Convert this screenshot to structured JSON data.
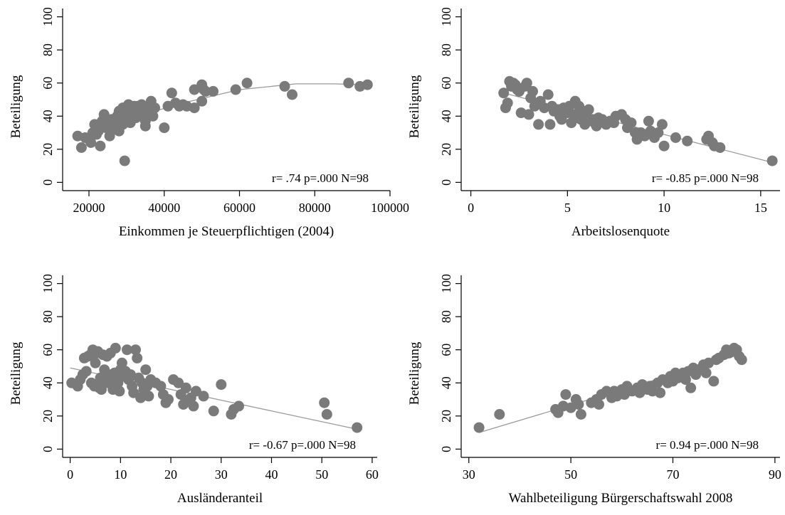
{
  "chart_data": [
    {
      "type": "scatter",
      "xlabel": "Einkommen je Steuerpflichtigen (2004)",
      "ylabel": "Beteiligung",
      "xlim": [
        13000,
        100000
      ],
      "ylim": [
        -5,
        105
      ],
      "xticks": [
        20000,
        40000,
        60000,
        80000,
        100000
      ],
      "xtick_labels": [
        "20000",
        "40000",
        "60000",
        "80000",
        "100000"
      ],
      "yticks": [
        0,
        20,
        40,
        60,
        80,
        100
      ],
      "annotation": "r= .74 p=.000 N=98",
      "fit": {
        "kind": "quadratic",
        "points": [
          [
            17000,
            26
          ],
          [
            30000,
            38
          ],
          [
            45000,
            48
          ],
          [
            60000,
            56
          ],
          [
            75000,
            59.5
          ],
          [
            85000,
            59.5
          ],
          [
            94000,
            59
          ]
        ]
      },
      "points": [
        [
          17000,
          28
        ],
        [
          18000,
          21
        ],
        [
          19000,
          27
        ],
        [
          20000,
          26
        ],
        [
          20500,
          24
        ],
        [
          21000,
          30
        ],
        [
          21500,
          35
        ],
        [
          22000,
          29
        ],
        [
          22500,
          31
        ],
        [
          23000,
          22
        ],
        [
          23500,
          37
        ],
        [
          24000,
          41
        ],
        [
          24500,
          33
        ],
        [
          25000,
          35
        ],
        [
          25500,
          28
        ],
        [
          26000,
          38
        ],
        [
          26500,
          32
        ],
        [
          27000,
          36
        ],
        [
          27500,
          40
        ],
        [
          28000,
          43
        ],
        [
          28000,
          31
        ],
        [
          28500,
          39
        ],
        [
          29000,
          45
        ],
        [
          29000,
          35
        ],
        [
          29500,
          13
        ],
        [
          30000,
          44
        ],
        [
          30000,
          38
        ],
        [
          30500,
          47
        ],
        [
          31000,
          41
        ],
        [
          31000,
          36
        ],
        [
          31500,
          44
        ],
        [
          32000,
          46
        ],
        [
          32500,
          39
        ],
        [
          33000,
          46
        ],
        [
          33500,
          43
        ],
        [
          34000,
          47
        ],
        [
          34500,
          41
        ],
        [
          35000,
          37
        ],
        [
          35000,
          34
        ],
        [
          35500,
          45
        ],
        [
          36000,
          43
        ],
        [
          36500,
          49
        ],
        [
          37000,
          40
        ],
        [
          37500,
          45
        ],
        [
          40000,
          33
        ],
        [
          41000,
          46
        ],
        [
          42000,
          54
        ],
        [
          43000,
          48
        ],
        [
          44000,
          46
        ],
        [
          45000,
          47
        ],
        [
          46000,
          46
        ],
        [
          48000,
          45
        ],
        [
          48000,
          56
        ],
        [
          50000,
          49
        ],
        [
          50000,
          59
        ],
        [
          50500,
          56
        ],
        [
          51000,
          55
        ],
        [
          53000,
          55
        ],
        [
          59000,
          56
        ],
        [
          62000,
          60
        ],
        [
          72000,
          58
        ],
        [
          74000,
          53
        ],
        [
          89000,
          60
        ],
        [
          92000,
          58
        ],
        [
          94000,
          59
        ]
      ]
    },
    {
      "type": "scatter",
      "xlabel": "Arbeitslosenquote",
      "ylabel": "Beteiligung",
      "xlim": [
        -0.5,
        16
      ],
      "ylim": [
        -5,
        105
      ],
      "xticks": [
        0,
        5,
        10,
        15
      ],
      "xtick_labels": [
        "0",
        "5",
        "10",
        "15"
      ],
      "yticks": [
        0,
        20,
        40,
        60,
        80,
        100
      ],
      "annotation": "r= -0.85 p=.000 N=98",
      "fit": {
        "kind": "linear",
        "points": [
          [
            1.7,
            54
          ],
          [
            15.6,
            12
          ]
        ]
      },
      "points": [
        [
          1.7,
          54
        ],
        [
          1.8,
          45
        ],
        [
          1.9,
          48
        ],
        [
          2.0,
          61
        ],
        [
          2.1,
          58
        ],
        [
          2.2,
          60
        ],
        [
          2.3,
          59
        ],
        [
          2.4,
          56
        ],
        [
          2.5,
          55
        ],
        [
          2.6,
          42
        ],
        [
          2.8,
          58
        ],
        [
          2.9,
          60
        ],
        [
          3.0,
          41
        ],
        [
          3.1,
          51
        ],
        [
          3.2,
          55
        ],
        [
          3.3,
          46
        ],
        [
          3.5,
          35
        ],
        [
          3.6,
          49
        ],
        [
          3.8,
          45
        ],
        [
          4.0,
          53
        ],
        [
          4.1,
          35
        ],
        [
          4.2,
          46
        ],
        [
          4.3,
          43
        ],
        [
          4.5,
          44
        ],
        [
          4.6,
          40
        ],
        [
          4.7,
          38
        ],
        [
          4.8,
          45
        ],
        [
          5.0,
          42
        ],
        [
          5.1,
          46
        ],
        [
          5.2,
          36
        ],
        [
          5.3,
          41
        ],
        [
          5.4,
          49
        ],
        [
          5.5,
          39
        ],
        [
          5.6,
          46
        ],
        [
          5.7,
          38
        ],
        [
          5.8,
          43
        ],
        [
          5.9,
          35
        ],
        [
          6.0,
          40
        ],
        [
          6.1,
          44
        ],
        [
          6.3,
          38
        ],
        [
          6.4,
          36
        ],
        [
          6.5,
          34
        ],
        [
          6.6,
          39
        ],
        [
          6.8,
          38
        ],
        [
          7.0,
          35
        ],
        [
          7.2,
          37
        ],
        [
          7.4,
          36
        ],
        [
          7.5,
          40
        ],
        [
          7.8,
          41
        ],
        [
          8.0,
          38
        ],
        [
          8.1,
          33
        ],
        [
          8.3,
          36
        ],
        [
          8.5,
          30
        ],
        [
          8.6,
          26
        ],
        [
          8.8,
          30
        ],
        [
          9.0,
          28
        ],
        [
          9.2,
          37
        ],
        [
          9.3,
          31
        ],
        [
          9.5,
          27
        ],
        [
          9.7,
          30
        ],
        [
          9.9,
          35
        ],
        [
          10.0,
          22
        ],
        [
          10.6,
          27
        ],
        [
          11.2,
          25
        ],
        [
          12.2,
          26
        ],
        [
          12.3,
          28
        ],
        [
          12.5,
          24
        ],
        [
          12.6,
          22
        ],
        [
          12.9,
          21
        ],
        [
          15.6,
          13
        ]
      ]
    },
    {
      "type": "scatter",
      "xlabel": "Ausländeranteil",
      "ylabel": "Beteiligung",
      "xlim": [
        -1.5,
        61
      ],
      "ylim": [
        -5,
        105
      ],
      "xticks": [
        0,
        10,
        20,
        30,
        40,
        50,
        60
      ],
      "xtick_labels": [
        "0",
        "10",
        "20",
        "30",
        "40",
        "50",
        "60"
      ],
      "yticks": [
        0,
        20,
        40,
        60,
        80,
        100
      ],
      "annotation": "r= -0.67 p=.000 N=98",
      "fit": {
        "kind": "linear",
        "points": [
          [
            0,
            49
          ],
          [
            57,
            12
          ]
        ]
      },
      "points": [
        [
          0.3,
          40
        ],
        [
          1.5,
          38
        ],
        [
          2.0,
          42
        ],
        [
          2.5,
          45
        ],
        [
          2.8,
          55
        ],
        [
          3.2,
          47
        ],
        [
          3.5,
          56
        ],
        [
          4.0,
          57
        ],
        [
          4.2,
          40
        ],
        [
          4.5,
          60
        ],
        [
          4.8,
          38
        ],
        [
          5.0,
          52
        ],
        [
          5.2,
          58
        ],
        [
          5.5,
          59
        ],
        [
          5.8,
          37
        ],
        [
          6.0,
          43
        ],
        [
          6.2,
          36
        ],
        [
          6.5,
          57
        ],
        [
          6.8,
          48
        ],
        [
          7.0,
          42
        ],
        [
          7.3,
          56
        ],
        [
          7.6,
          40
        ],
        [
          8.0,
          58
        ],
        [
          8.2,
          45
        ],
        [
          8.5,
          36
        ],
        [
          8.8,
          46
        ],
        [
          9.0,
          61
        ],
        [
          9.3,
          42
        ],
        [
          9.5,
          40
        ],
        [
          9.8,
          35
        ],
        [
          10.0,
          48
        ],
        [
          10.3,
          52
        ],
        [
          10.6,
          44
        ],
        [
          11.0,
          47
        ],
        [
          11.3,
          60
        ],
        [
          11.6,
          42
        ],
        [
          12.0,
          45
        ],
        [
          12.3,
          38
        ],
        [
          12.6,
          34
        ],
        [
          13.0,
          60
        ],
        [
          13.3,
          55
        ],
        [
          13.6,
          43
        ],
        [
          14.0,
          31
        ],
        [
          14.3,
          40
        ],
        [
          14.6,
          36
        ],
        [
          15.0,
          48
        ],
        [
          15.3,
          38
        ],
        [
          15.6,
          32
        ],
        [
          16.0,
          42
        ],
        [
          17.0,
          40
        ],
        [
          18.0,
          38
        ],
        [
          18.5,
          33
        ],
        [
          19.0,
          28
        ],
        [
          19.5,
          30
        ],
        [
          20.5,
          42
        ],
        [
          21.5,
          40
        ],
        [
          22.0,
          33
        ],
        [
          22.5,
          27
        ],
        [
          23.0,
          37
        ],
        [
          23.5,
          29
        ],
        [
          24.0,
          31
        ],
        [
          24.5,
          26
        ],
        [
          25.0,
          35
        ],
        [
          26.5,
          32
        ],
        [
          28.5,
          23
        ],
        [
          30.0,
          39
        ],
        [
          32.0,
          21
        ],
        [
          32.5,
          24
        ],
        [
          33.5,
          26
        ],
        [
          50.5,
          28
        ],
        [
          51.0,
          21
        ],
        [
          57.0,
          13
        ]
      ]
    },
    {
      "type": "scatter",
      "xlabel": "Wahlbeteiligung Bürgerschaftswahl 2008",
      "ylabel": "Beteiligung",
      "xlim": [
        28.5,
        91
      ],
      "ylim": [
        -5,
        105
      ],
      "xticks": [
        30,
        50,
        70,
        90
      ],
      "xtick_labels": [
        "30",
        "50",
        "70",
        "90"
      ],
      "yticks": [
        0,
        20,
        40,
        60,
        80,
        100
      ],
      "annotation": "r= 0.94 p=.000 N=98",
      "fit": {
        "kind": "linear",
        "points": [
          [
            32,
            10
          ],
          [
            83,
            57
          ]
        ]
      },
      "points": [
        [
          32,
          13
        ],
        [
          36,
          21
        ],
        [
          47,
          24
        ],
        [
          47.5,
          22
        ],
        [
          48.5,
          26
        ],
        [
          49,
          33
        ],
        [
          50,
          25
        ],
        [
          51,
          30
        ],
        [
          51.5,
          27
        ],
        [
          52,
          21
        ],
        [
          54,
          28
        ],
        [
          55,
          30
        ],
        [
          55.5,
          27
        ],
        [
          56,
          33
        ],
        [
          57,
          35
        ],
        [
          58,
          31
        ],
        [
          58.5,
          35
        ],
        [
          59,
          32
        ],
        [
          60,
          36
        ],
        [
          60.5,
          33
        ],
        [
          61,
          38
        ],
        [
          62,
          35
        ],
        [
          63,
          37
        ],
        [
          63.5,
          34
        ],
        [
          64,
          39
        ],
        [
          65,
          36
        ],
        [
          65.5,
          38
        ],
        [
          66,
          35
        ],
        [
          67,
          40
        ],
        [
          67.5,
          34
        ],
        [
          68,
          42
        ],
        [
          69,
          40
        ],
        [
          69.5,
          44
        ],
        [
          70,
          41
        ],
        [
          70.5,
          46
        ],
        [
          71,
          43
        ],
        [
          72,
          46
        ],
        [
          72.5,
          42
        ],
        [
          73,
          47
        ],
        [
          73.5,
          37
        ],
        [
          74,
          49
        ],
        [
          74.5,
          45
        ],
        [
          75,
          48
        ],
        [
          76,
          51
        ],
        [
          76.5,
          46
        ],
        [
          77,
          52
        ],
        [
          78,
          41
        ],
        [
          78.5,
          54
        ],
        [
          79,
          55
        ],
        [
          80,
          57
        ],
        [
          80.5,
          60
        ],
        [
          81,
          58
        ],
        [
          81.5,
          59
        ],
        [
          82,
          61
        ],
        [
          82.5,
          60
        ],
        [
          83,
          56
        ],
        [
          83.5,
          54
        ]
      ]
    }
  ]
}
